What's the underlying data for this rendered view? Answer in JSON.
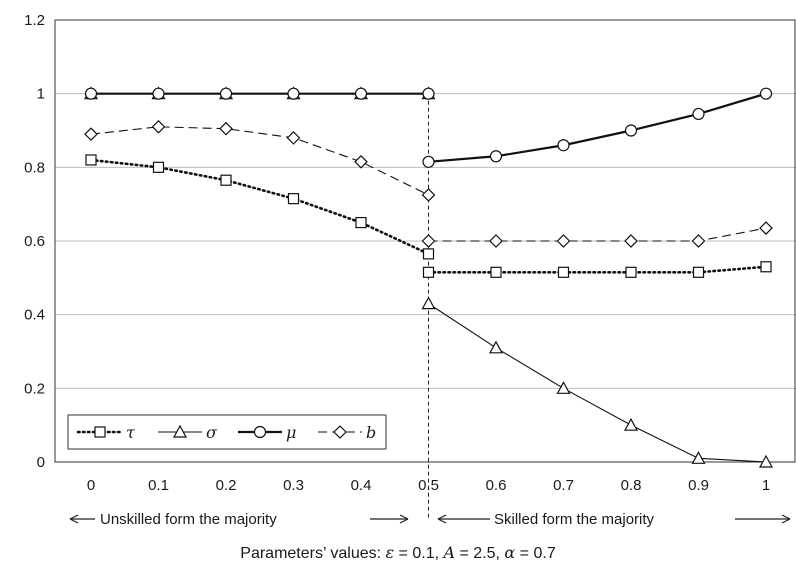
{
  "chart_data": {
    "type": "line",
    "ylim": [
      0,
      1.2
    ],
    "yticks": [
      "0",
      "0.2",
      "0.4",
      "0.6",
      "0.8",
      "1",
      "1.2"
    ],
    "xticks": [
      "0",
      "0.1",
      "0.2",
      "0.3",
      "0.4",
      "0.5",
      "0.6",
      "0.7",
      "0.8",
      "0.9",
      "1"
    ],
    "grid": "horizontal",
    "legend_position": "bottom-left",
    "series": [
      {
        "name": "τ",
        "marker": "square",
        "line": "dotted",
        "segments": [
          {
            "x": [
              0,
              0.1,
              0.2,
              0.3,
              0.4,
              0.5
            ],
            "y": [
              0.82,
              0.8,
              0.765,
              0.715,
              0.65,
              0.565
            ]
          },
          {
            "x": [
              0.5,
              0.6,
              0.7,
              0.8,
              0.9,
              1
            ],
            "y": [
              0.515,
              0.515,
              0.515,
              0.515,
              0.515,
              0.53
            ]
          }
        ]
      },
      {
        "name": "σ",
        "marker": "triangle",
        "line": "thin",
        "segments": [
          {
            "x": [
              0,
              0.1,
              0.2,
              0.3,
              0.4,
              0.5
            ],
            "y": [
              1.0,
              1.0,
              1.0,
              1.0,
              1.0,
              1.0
            ]
          },
          {
            "x": [
              0.5,
              0.6,
              0.7,
              0.8,
              0.9,
              1
            ],
            "y": [
              0.43,
              0.31,
              0.2,
              0.1,
              0.01,
              0.0
            ]
          }
        ]
      },
      {
        "name": "μ",
        "marker": "circle",
        "line": "solid",
        "segments": [
          {
            "x": [
              0,
              0.1,
              0.2,
              0.3,
              0.4,
              0.5
            ],
            "y": [
              1.0,
              1.0,
              1.0,
              1.0,
              1.0,
              1.0
            ]
          },
          {
            "x": [
              0.5,
              0.6,
              0.7,
              0.8,
              0.9,
              1
            ],
            "y": [
              0.815,
              0.83,
              0.86,
              0.9,
              0.945,
              1.0
            ]
          }
        ]
      },
      {
        "name": "b",
        "marker": "diamond",
        "line": "dashed",
        "segments": [
          {
            "x": [
              0,
              0.1,
              0.2,
              0.3,
              0.4,
              0.5
            ],
            "y": [
              0.89,
              0.91,
              0.905,
              0.88,
              0.815,
              0.725
            ]
          },
          {
            "x": [
              0.5,
              0.6,
              0.7,
              0.8,
              0.9,
              1
            ],
            "y": [
              0.6,
              0.6,
              0.6,
              0.6,
              0.6,
              0.635
            ]
          }
        ]
      }
    ],
    "divider_x": 0.5,
    "region_labels": {
      "left": "Unskilled form the majority",
      "right": "Skilled form the majority"
    },
    "parameters_caption": {
      "prefix": "Parameters’ values: ",
      "eps_sym": "ε",
      "eps_val": " = 0.1, ",
      "a_sym": "A",
      "a_val": " = 2.5,  ",
      "alpha_sym": "α",
      "alpha_val": " = 0.7"
    }
  }
}
